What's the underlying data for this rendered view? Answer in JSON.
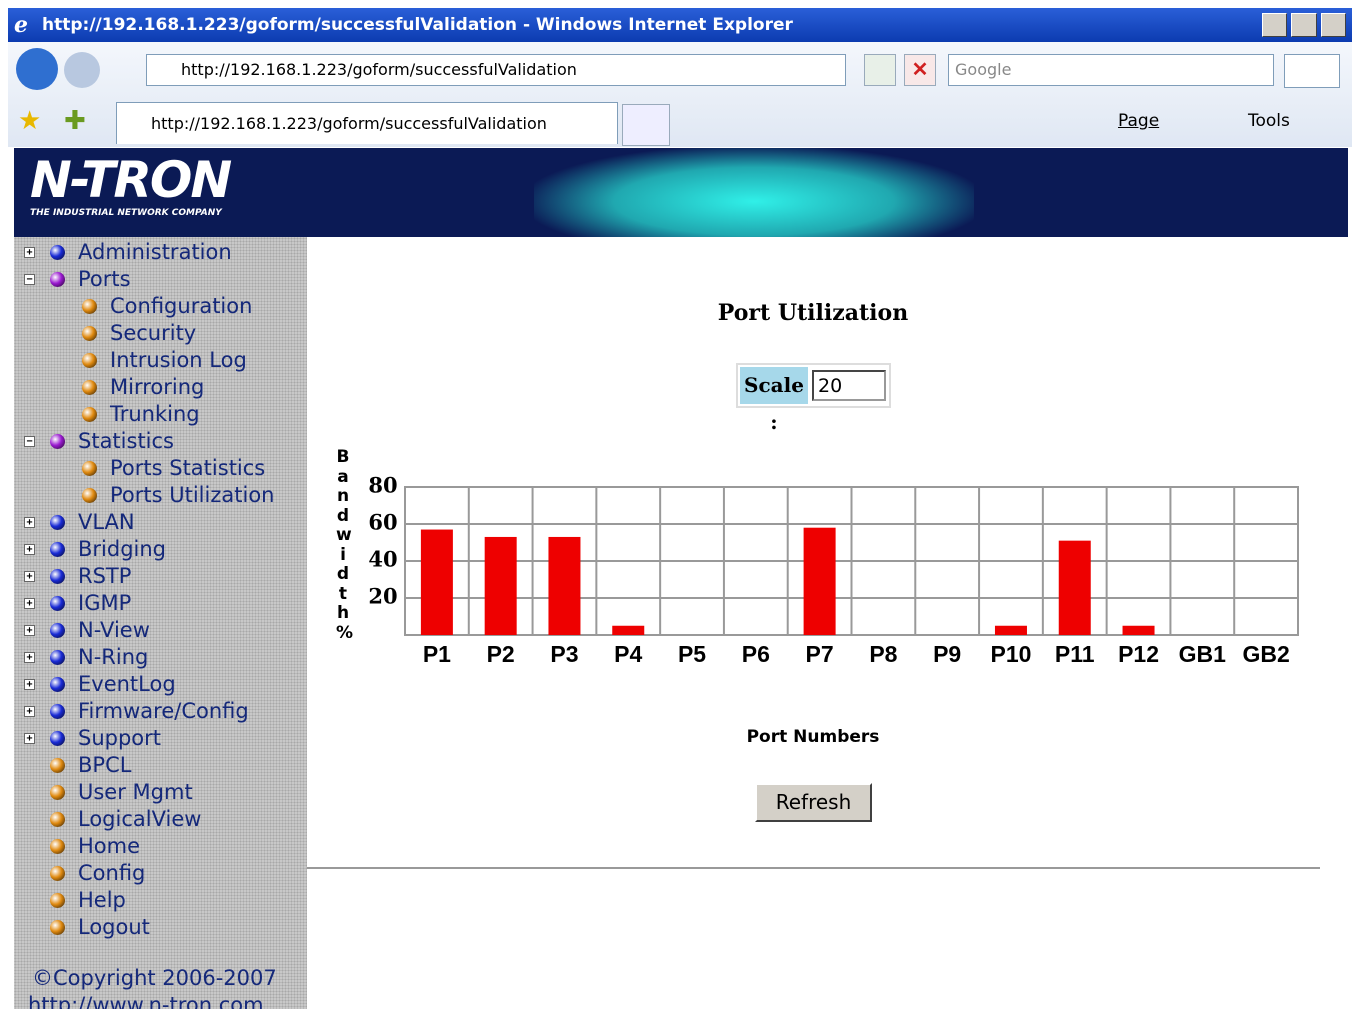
{
  "window": {
    "title": "http://192.168.1.223/goform/successfulValidation - Windows Internet Explorer"
  },
  "toolbar": {
    "address": "http://192.168.1.223/goform/successfulValidation",
    "search": "Google",
    "tab": "http://192.168.1.223/goform/successfulValidation",
    "page": "Page",
    "tools": "Tools"
  },
  "banner": {
    "logo": "N-TRON",
    "tagline": "THE INDUSTRIAL NETWORK COMPANY"
  },
  "nav": {
    "items": [
      {
        "label": "Administration",
        "color": "#1a2bd6",
        "expanded": false
      },
      {
        "label": "Ports",
        "color": "#9a1ad0",
        "expanded": true,
        "children": [
          {
            "label": "Configuration",
            "color": "#e08a10"
          },
          {
            "label": "Security",
            "color": "#e08a10"
          },
          {
            "label": "Intrusion Log",
            "color": "#e08a10"
          },
          {
            "label": "Mirroring",
            "color": "#e08a10"
          },
          {
            "label": "Trunking",
            "color": "#e08a10"
          }
        ]
      },
      {
        "label": "Statistics",
        "color": "#9a1ad0",
        "expanded": true,
        "children": [
          {
            "label": "Ports Statistics",
            "color": "#e08a10"
          },
          {
            "label": "Ports Utilization",
            "color": "#e08a10"
          }
        ]
      },
      {
        "label": "VLAN",
        "color": "#1a2bd6",
        "expanded": false
      },
      {
        "label": "Bridging",
        "color": "#1a2bd6",
        "expanded": false
      },
      {
        "label": "RSTP",
        "color": "#1a2bd6",
        "expanded": false
      },
      {
        "label": "IGMP",
        "color": "#1a2bd6",
        "expanded": false
      },
      {
        "label": "N-View",
        "color": "#1a2bd6",
        "expanded": false
      },
      {
        "label": "N-Ring",
        "color": "#1a2bd6",
        "expanded": false
      },
      {
        "label": "EventLog",
        "color": "#1a2bd6",
        "expanded": false
      },
      {
        "label": "Firmware/Config",
        "color": "#1a2bd6",
        "expanded": false
      },
      {
        "label": "Support",
        "color": "#1a2bd6",
        "expanded": false
      },
      {
        "label": "BPCL",
        "color": "#e08a10"
      },
      {
        "label": "User Mgmt",
        "color": "#e08a10"
      },
      {
        "label": "LogicalView",
        "color": "#e08a10"
      },
      {
        "label": "Home",
        "color": "#e08a10"
      },
      {
        "label": "Config",
        "color": "#e08a10"
      },
      {
        "label": "Help",
        "color": "#e08a10"
      },
      {
        "label": "Logout",
        "color": "#e08a10"
      }
    ]
  },
  "footer": {
    "copyright": "©Copyright 2006-2007",
    "url": "http://www.n-tron.com"
  },
  "controls": {
    "scale_label": "Scale :",
    "scale_value": "20",
    "refresh": "Refresh"
  },
  "chart_data": {
    "type": "bar",
    "title": "Port Utilization",
    "y_label": "Bandwidth %",
    "x_label": "Port Numbers",
    "categories": [
      "P1",
      "P2",
      "P3",
      "P4",
      "P5",
      "P6",
      "P7",
      "P8",
      "P9",
      "P10",
      "P11",
      "P12",
      "GB1",
      "GB2"
    ],
    "values": [
      57,
      53,
      53,
      5,
      0,
      0,
      58,
      0,
      0,
      5,
      51,
      5,
      0,
      0
    ],
    "color": "#ee0000",
    "ylim": [
      0,
      80
    ],
    "yticks": [
      20,
      40,
      60,
      80
    ],
    "grid": true
  }
}
